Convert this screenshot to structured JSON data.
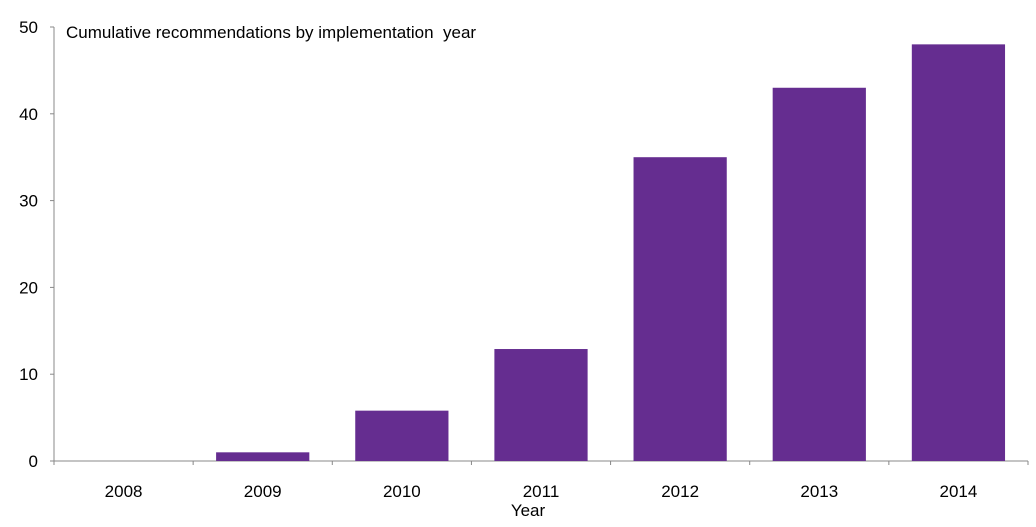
{
  "chart_data": {
    "type": "bar",
    "title": "Cumulative recommendations by implementation  year",
    "xlabel": "Year",
    "ylabel": "",
    "categories": [
      "2008",
      "2009",
      "2010",
      "2011",
      "2012",
      "2013",
      "2014"
    ],
    "values": [
      0,
      1,
      5.8,
      12.9,
      35,
      43,
      48
    ],
    "ylim": [
      0,
      50
    ],
    "yticks": [
      "0",
      "10",
      "20",
      "30",
      "40",
      "50"
    ],
    "bar_color": "#652D90",
    "grid": false,
    "legend": "none"
  }
}
